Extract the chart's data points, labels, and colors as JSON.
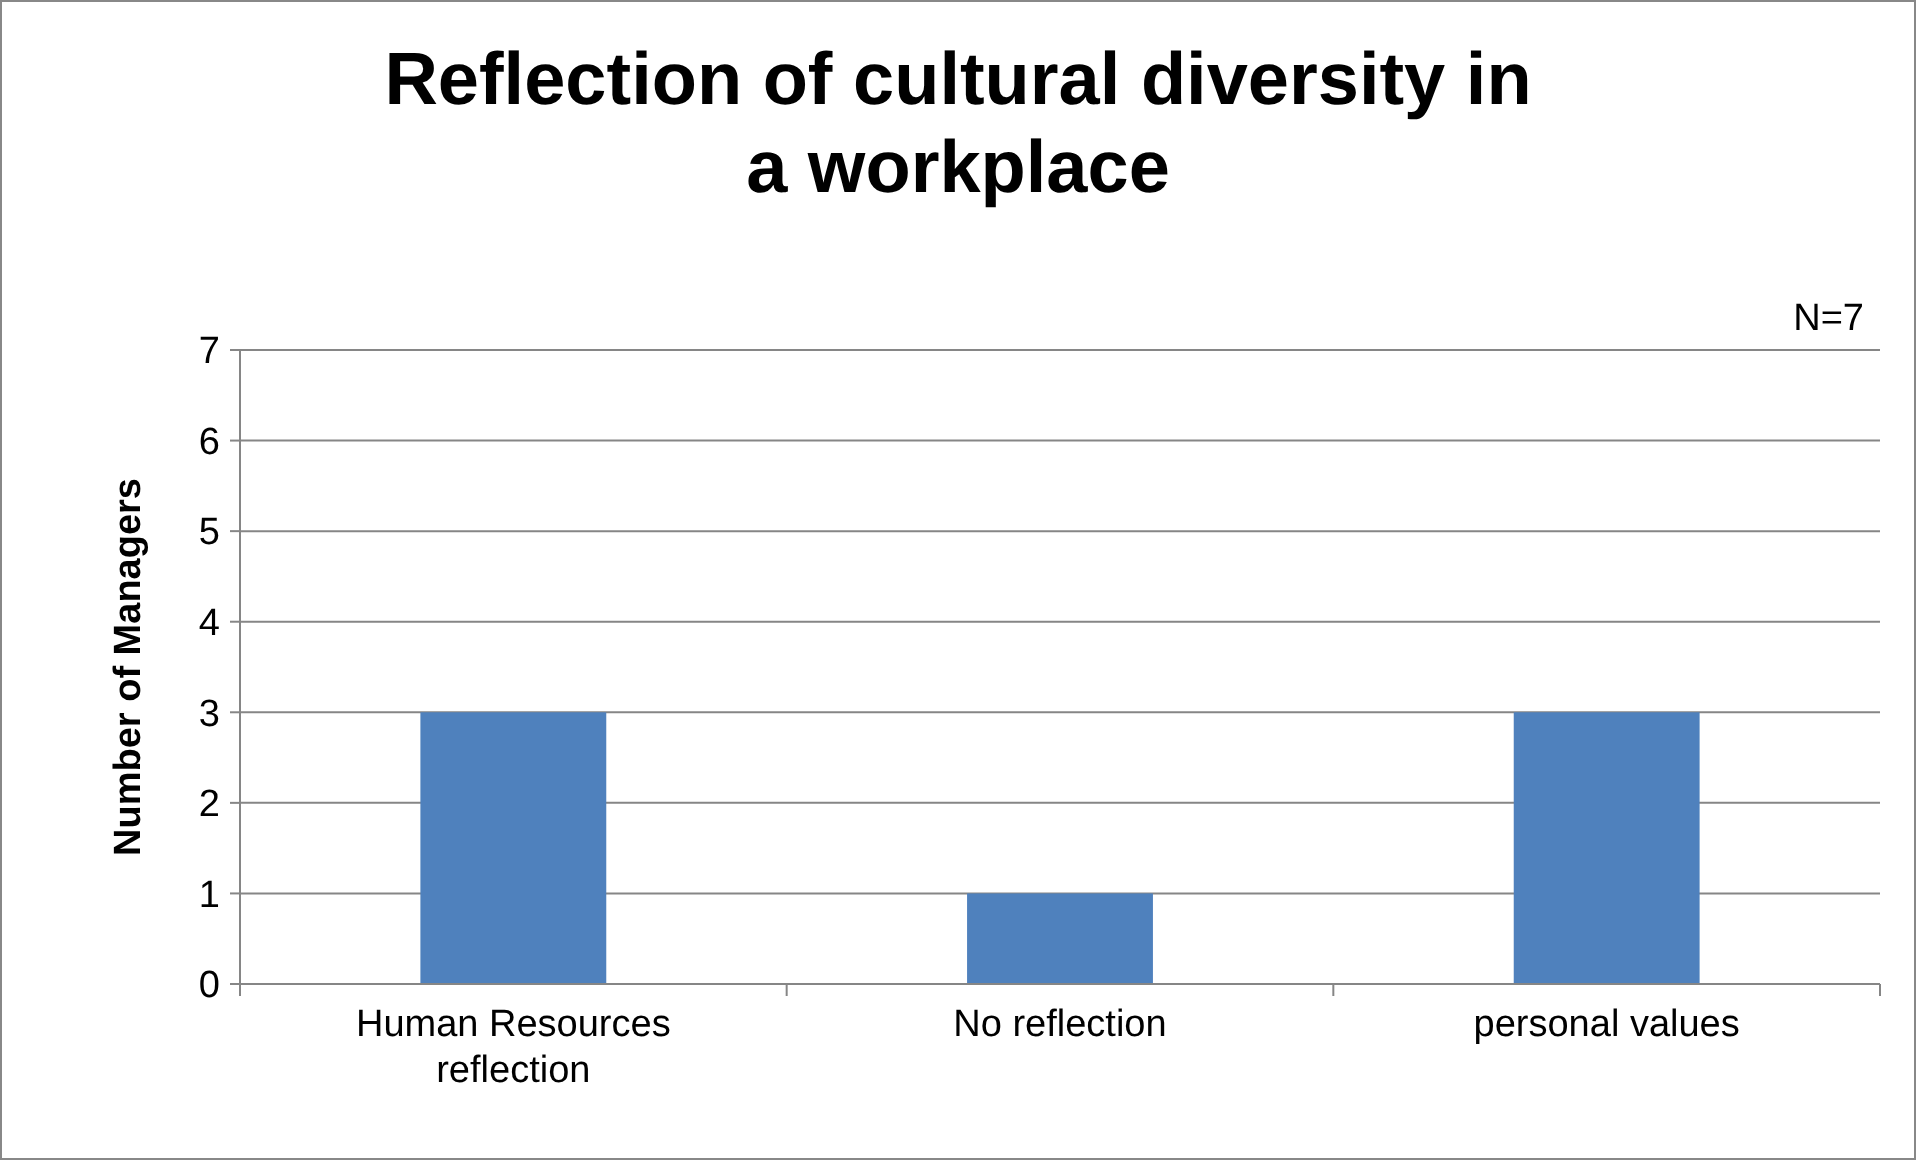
{
  "chart_data": {
    "type": "bar",
    "title": "Reflection of cultural diversity in a workplace",
    "ylabel": "Number of Managers",
    "categories": [
      "Human Resources reflection",
      "No reflection",
      "personal values"
    ],
    "values": [
      3,
      1,
      3
    ],
    "color": "#4f81bd",
    "ylim": [
      0,
      7
    ],
    "yticks": [
      0,
      1,
      2,
      3,
      4,
      5,
      6,
      7
    ],
    "grid": "y",
    "annotations": [
      "N=7"
    ]
  }
}
